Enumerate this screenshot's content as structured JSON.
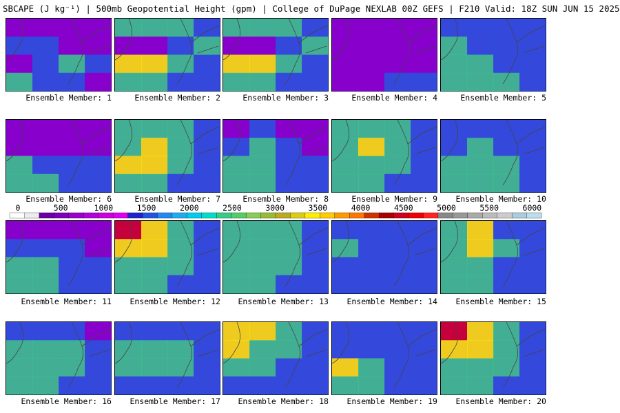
{
  "header": {
    "title": "SBCAPE (J kg⁻¹) | 500mb Geopotential Height (gpm) | College of DuPage NEXLAB 00Z GEFS | F210 Valid: 18Z SUN JUN 15 2025"
  },
  "panel_label_prefix": "Ensemble Member: ",
  "members": [
    {
      "label": "Ensemble Member: 1",
      "mask": [
        1,
        1,
        1,
        1,
        2,
        2,
        1,
        1,
        1,
        2,
        3,
        2,
        3,
        2,
        2,
        1
      ]
    },
    {
      "label": "Ensemble Member: 2",
      "mask": [
        3,
        3,
        3,
        2,
        1,
        1,
        2,
        3,
        4,
        4,
        3,
        2,
        3,
        3,
        2,
        2
      ]
    },
    {
      "label": "Ensemble Member: 3",
      "mask": [
        3,
        3,
        3,
        2,
        1,
        1,
        2,
        3,
        4,
        4,
        3,
        2,
        3,
        3,
        2,
        2
      ]
    },
    {
      "label": "Ensemble Member: 4",
      "mask": [
        1,
        1,
        1,
        1,
        1,
        1,
        1,
        1,
        1,
        1,
        1,
        1,
        1,
        1,
        2,
        2
      ]
    },
    {
      "label": "Ensemble Member: 5",
      "mask": [
        2,
        2,
        2,
        2,
        3,
        2,
        2,
        2,
        3,
        3,
        2,
        2,
        3,
        3,
        3,
        2
      ]
    },
    {
      "label": "Ensemble Member: 6",
      "mask": [
        1,
        1,
        1,
        1,
        1,
        1,
        1,
        1,
        3,
        2,
        2,
        2,
        3,
        3,
        2,
        2
      ]
    },
    {
      "label": "Ensemble Member: 7",
      "mask": [
        3,
        3,
        3,
        2,
        3,
        4,
        3,
        2,
        4,
        4,
        3,
        2,
        3,
        3,
        2,
        2
      ]
    },
    {
      "label": "Ensemble Member: 8",
      "mask": [
        1,
        2,
        1,
        1,
        2,
        3,
        2,
        1,
        3,
        3,
        2,
        2,
        3,
        3,
        2,
        2
      ]
    },
    {
      "label": "Ensemble Member: 9",
      "mask": [
        3,
        3,
        3,
        2,
        3,
        4,
        3,
        2,
        3,
        3,
        3,
        2,
        3,
        3,
        2,
        2
      ]
    },
    {
      "label": "Ensemble Member: 10",
      "mask": [
        2,
        2,
        2,
        2,
        2,
        3,
        2,
        2,
        3,
        3,
        3,
        2,
        3,
        3,
        3,
        2
      ]
    },
    {
      "label": "Ensemble Member: 11",
      "mask": [
        1,
        1,
        1,
        1,
        2,
        2,
        2,
        1,
        3,
        3,
        2,
        2,
        3,
        3,
        2,
        2
      ]
    },
    {
      "label": "Ensemble Member: 12",
      "mask": [
        5,
        4,
        3,
        2,
        4,
        4,
        3,
        2,
        3,
        3,
        3,
        2,
        3,
        3,
        2,
        2
      ]
    },
    {
      "label": "Ensemble Member: 13",
      "mask": [
        3,
        3,
        3,
        2,
        3,
        3,
        3,
        2,
        3,
        3,
        3,
        2,
        3,
        3,
        2,
        2
      ]
    },
    {
      "label": "Ensemble Member: 14",
      "mask": [
        2,
        2,
        2,
        2,
        3,
        2,
        2,
        2,
        2,
        2,
        2,
        2,
        2,
        2,
        2,
        2
      ]
    },
    {
      "label": "Ensemble Member: 15",
      "mask": [
        3,
        4,
        2,
        2,
        3,
        4,
        3,
        2,
        3,
        3,
        2,
        2,
        3,
        3,
        2,
        2
      ]
    },
    {
      "label": "Ensemble Member: 16",
      "mask": [
        2,
        2,
        2,
        1,
        3,
        3,
        3,
        2,
        3,
        3,
        3,
        2,
        3,
        3,
        2,
        2
      ]
    },
    {
      "label": "Ensemble Member: 17",
      "mask": [
        2,
        2,
        2,
        2,
        3,
        3,
        3,
        2,
        3,
        3,
        3,
        2,
        2,
        2,
        2,
        2
      ]
    },
    {
      "label": "Ensemble Member: 18",
      "mask": [
        4,
        4,
        3,
        2,
        4,
        3,
        3,
        2,
        3,
        3,
        2,
        2,
        2,
        2,
        2,
        2
      ]
    },
    {
      "label": "Ensemble Member: 19",
      "mask": [
        2,
        2,
        2,
        2,
        2,
        2,
        2,
        2,
        4,
        3,
        2,
        2,
        3,
        3,
        2,
        2
      ]
    },
    {
      "label": "Ensemble Member: 20",
      "mask": [
        5,
        4,
        3,
        2,
        4,
        4,
        3,
        2,
        3,
        3,
        3,
        2,
        3,
        3,
        2,
        2
      ]
    }
  ],
  "colorbar": {
    "ticks": [
      "0",
      "500",
      "1000",
      "1500",
      "2000",
      "2500",
      "3000",
      "3500",
      "4000",
      "4500",
      "5000",
      "5500",
      "6000"
    ],
    "colors": [
      "#ffffff",
      "#ececec",
      "#6a00a8",
      "#7f00b8",
      "#9900cc",
      "#b000dd",
      "#cc00dd",
      "#dd00ee",
      "#2222cc",
      "#2255dd",
      "#2288ee",
      "#22aaee",
      "#00ccee",
      "#00ddcc",
      "#33cc88",
      "#55cc66",
      "#88cc55",
      "#99bb33",
      "#bbaa22",
      "#ddcc11",
      "#ffee00",
      "#ffcc00",
      "#ff9900",
      "#ff7700",
      "#cc3300",
      "#aa0000",
      "#cc0022",
      "#ee0000",
      "#ff2222",
      "#888888",
      "#999999",
      "#aaaaaa",
      "#bbbbbb",
      "#cccccc",
      "#aaccdd",
      "#bbddee"
    ]
  }
}
